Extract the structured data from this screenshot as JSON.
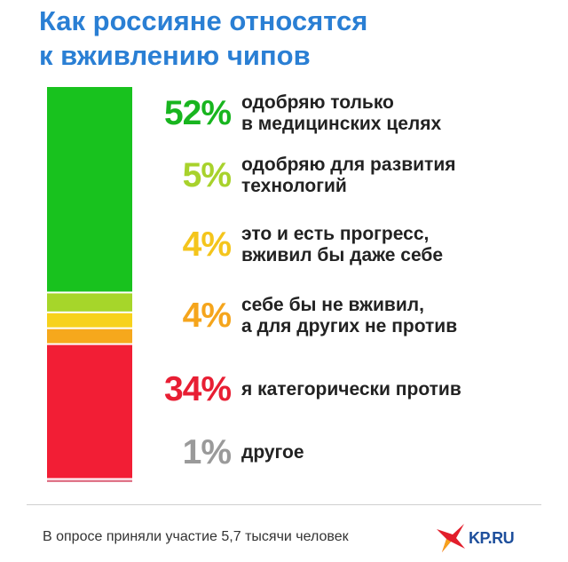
{
  "title": {
    "line1": "Как россияне относятся",
    "line2": "к вживлению чипов"
  },
  "chart_data": {
    "type": "bar",
    "subtype": "stacked-100",
    "title": "Как россияне относятся к вживлению чипов",
    "categories": [
      "одобряю только\nв медицинских целях",
      "одобряю для развития\nтехнологий",
      "это и есть прогресс,\nвживил бы даже себе",
      "себе бы не вживил,\nа для других не против",
      "я категорически против",
      "другое"
    ],
    "values": [
      52,
      5,
      4,
      4,
      34,
      1
    ],
    "labels": [
      "52%",
      "5%",
      "4%",
      "4%",
      "34%",
      "1%"
    ],
    "colors": [
      "#18c21e",
      "#a6d62a",
      "#f7d21c",
      "#f6a81c",
      "#f21e35",
      "#e0768a"
    ],
    "label_colors": [
      "#18b51f",
      "#a8d22c",
      "#f4c51c",
      "#f5a51c",
      "#e81e33",
      "#9a9a9a"
    ],
    "unit": "%",
    "legend": "right"
  },
  "footer": {
    "note": "В опросе приняли участие 5,7 тысячи человек",
    "logo": "KP.RU"
  },
  "colors": {
    "title": "#2a7fd4",
    "logo_text": "#1e4f9c",
    "logo_red": "#e21e2b"
  }
}
